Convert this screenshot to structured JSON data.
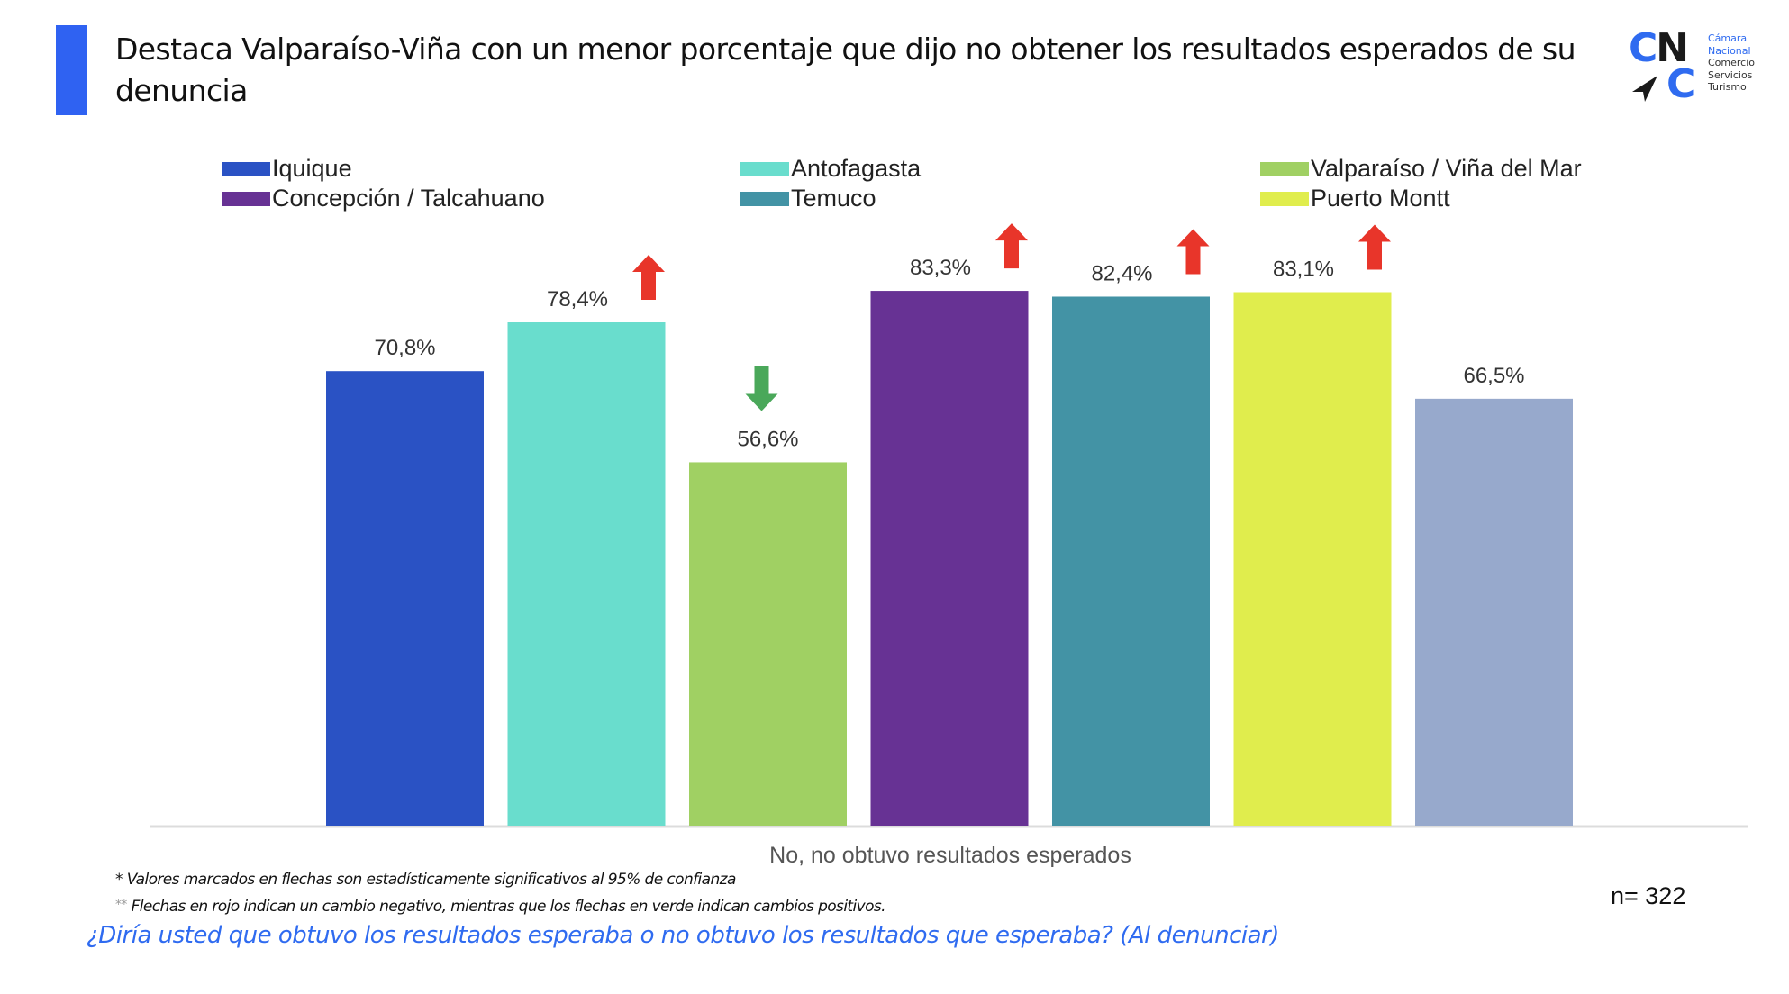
{
  "header": {
    "title": "Destaca Valparaíso-Viña con un menor porcentaje que dijo no obtener los resultados esperados de su denuncia",
    "accent_color": "#2f62f2"
  },
  "logo": {
    "letters_top": [
      "C",
      "N"
    ],
    "letter_bottom": "C",
    "words": [
      "Cámara",
      "Nacional",
      "Comercio",
      "Servicios",
      "Turismo"
    ]
  },
  "chart_data": {
    "type": "bar",
    "title": "",
    "xlabel": "",
    "ylabel": "",
    "ylim": [
      0,
      100
    ],
    "grid": false,
    "legend_position": "top",
    "categories": [
      "No, no obtuvo resultados esperados"
    ],
    "series": [
      {
        "name": "Iquique",
        "values": [
          70.8
        ],
        "label": "70,8%",
        "color": "#2a52c4",
        "arrow": null
      },
      {
        "name": "Antofagasta",
        "values": [
          78.4
        ],
        "label": "78,4%",
        "color": "#69ddcd",
        "arrow": "up-red"
      },
      {
        "name": "Valparaíso / Viña del Mar",
        "values": [
          56.6
        ],
        "label": "56,6%",
        "color": "#a0d063",
        "arrow": "down-green"
      },
      {
        "name": "Concepción / Talcahuano",
        "values": [
          83.3
        ],
        "label": "83,3%",
        "color": "#673294",
        "arrow": "up-red"
      },
      {
        "name": "Temuco",
        "values": [
          82.4
        ],
        "label": "82,4%",
        "color": "#4393a5",
        "arrow": "up-red"
      },
      {
        "name": "Puerto Montt",
        "values": [
          83.1
        ],
        "label": "83,1%",
        "color": "#e0ed4d",
        "arrow": "up-red"
      },
      {
        "name": "",
        "values": [
          66.5
        ],
        "label": "66,5%",
        "color": "#97a9cc",
        "arrow": null,
        "in_legend": false
      }
    ],
    "arrow_colors": {
      "up-red": "#e8352a",
      "down-green": "#4aa85a"
    }
  },
  "legend": {
    "items": [
      {
        "label": "Iquique",
        "color": "#2a52c4"
      },
      {
        "label": "Antofagasta",
        "color": "#69ddcd"
      },
      {
        "label": "Valparaíso / Viña del Mar",
        "color": "#a0d063"
      },
      {
        "label": "Concepción / Talcahuano",
        "color": "#673294"
      },
      {
        "label": "Temuco",
        "color": "#4393a5"
      },
      {
        "label": "Puerto Montt",
        "color": "#e0ed4d"
      }
    ]
  },
  "footer": {
    "category_label": "No, no obtuvo resultados esperados",
    "note1": "* Valores marcados en flechas son estadísticamente significativos al 95% de confianza",
    "note2_marker": "**",
    "note2": " Flechas en rojo indican un cambio negativo, mientras que los flechas en verde indican cambios positivos.",
    "sample_size": "n= 322",
    "question": "¿Diría usted que obtuvo los resultados esperaba o no obtuvo los resultados que esperaba?  (Al denunciar)"
  }
}
